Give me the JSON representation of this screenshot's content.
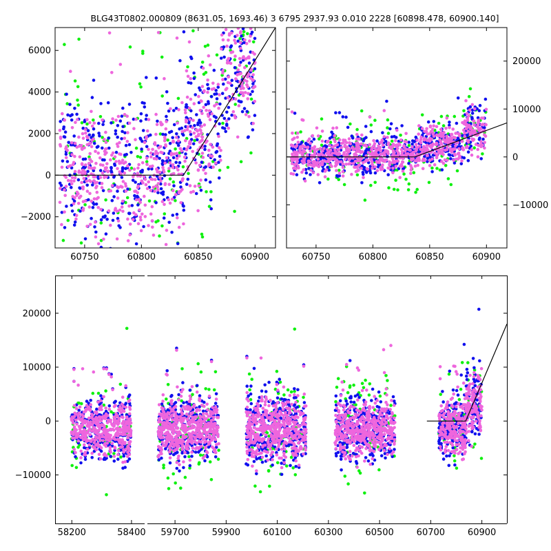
{
  "figure": {
    "title": "BLG43T0802.000809 (8631.05, 1693.46)  3 6795 2937.93 0.010 2228 [60898.478, 60900.140]"
  },
  "colors": {
    "series_1": "#1010ee",
    "series_2": "#10f010",
    "series_3": "#ee66dd",
    "model": "#000000"
  },
  "chart_data": [
    {
      "id": "top-left",
      "type": "scatter",
      "xlim": [
        60724,
        60918
      ],
      "ylim": [
        -3500,
        7100
      ],
      "x_ticks": [
        60750,
        60800,
        60850,
        60900
      ],
      "y_ticks": [
        -2000,
        0,
        2000,
        4000,
        6000
      ],
      "y_axis_side": "left",
      "model_line": [
        [
          60724,
          0
        ],
        [
          60837,
          0
        ],
        [
          60918,
          7100
        ]
      ],
      "clouds": [
        {
          "x": [
            60728,
            60752
          ],
          "center": 600,
          "spread": 1700
        },
        {
          "x": [
            60752,
            60800
          ],
          "center": 0,
          "spread": 1800
        },
        {
          "x": [
            60800,
            60838
          ],
          "center": 300,
          "spread": 1800
        },
        {
          "x": [
            60838,
            60870
          ],
          "center": 2300,
          "spread": 1700
        },
        {
          "x": [
            60870,
            60900
          ],
          "center": 4800,
          "spread": 1500
        }
      ],
      "series": [
        {
          "color_key": "series_2",
          "count": 160
        },
        {
          "color_key": "series_1",
          "count": 520
        },
        {
          "color_key": "series_3",
          "count": 620
        }
      ]
    },
    {
      "id": "top-right",
      "type": "scatter",
      "xlim": [
        60724,
        60918
      ],
      "ylim": [
        -19000,
        27000
      ],
      "x_ticks": [
        60750,
        60800,
        60850,
        60900
      ],
      "y_ticks": [
        -10000,
        0,
        10000,
        20000
      ],
      "y_axis_side": "right",
      "model_line": [
        [
          60724,
          0
        ],
        [
          60837,
          0
        ],
        [
          60918,
          7100
        ]
      ],
      "clouds": [
        {
          "x": [
            60728,
            60800
          ],
          "center": 300,
          "spread": 2200
        },
        {
          "x": [
            60800,
            60840
          ],
          "center": 600,
          "spread": 2200
        },
        {
          "x": [
            60840,
            60880
          ],
          "center": 2500,
          "spread": 2300
        },
        {
          "x": [
            60880,
            60900
          ],
          "center": 5500,
          "spread": 3000
        }
      ],
      "series": [
        {
          "color_key": "series_2",
          "count": 170
        },
        {
          "color_key": "series_1",
          "count": 520
        },
        {
          "color_key": "series_3",
          "count": 720
        }
      ]
    },
    {
      "id": "bottom",
      "type": "scatter",
      "ylim": [
        -19000,
        27000
      ],
      "y_ticks": [
        -10000,
        0,
        10000,
        20000
      ],
      "y_axis_side": "left",
      "segments": [
        {
          "xlim": [
            58144,
            58444
          ],
          "x_ticks": [
            58200,
            58400
          ]
        },
        {
          "xlim": [
            59592,
            60998
          ],
          "x_ticks": [
            59700,
            59900,
            60100,
            60300,
            60500,
            60700,
            60900
          ]
        }
      ],
      "model_line": [
        [
          60685,
          0
        ],
        [
          60837,
          0
        ],
        [
          60998,
          18000
        ]
      ],
      "clouds": [
        {
          "x": [
            58198,
            58398
          ],
          "center": -1500,
          "spread": 2800
        },
        {
          "x": [
            59634,
            59872
          ],
          "center": -1500,
          "spread": 3000
        },
        {
          "x": [
            59978,
            60212
          ],
          "center": -1500,
          "spread": 3200
        },
        {
          "x": [
            60326,
            60560
          ],
          "center": -1500,
          "spread": 3000
        },
        {
          "x": [
            60732,
            60838
          ],
          "center": -1000,
          "spread": 2800
        },
        {
          "x": [
            60838,
            60900
          ],
          "center": 3000,
          "spread": 3500
        }
      ],
      "series": [
        {
          "color_key": "series_2",
          "count": 380
        },
        {
          "color_key": "series_1",
          "count": 1600
        },
        {
          "color_key": "series_3",
          "count": 2200
        }
      ]
    }
  ]
}
